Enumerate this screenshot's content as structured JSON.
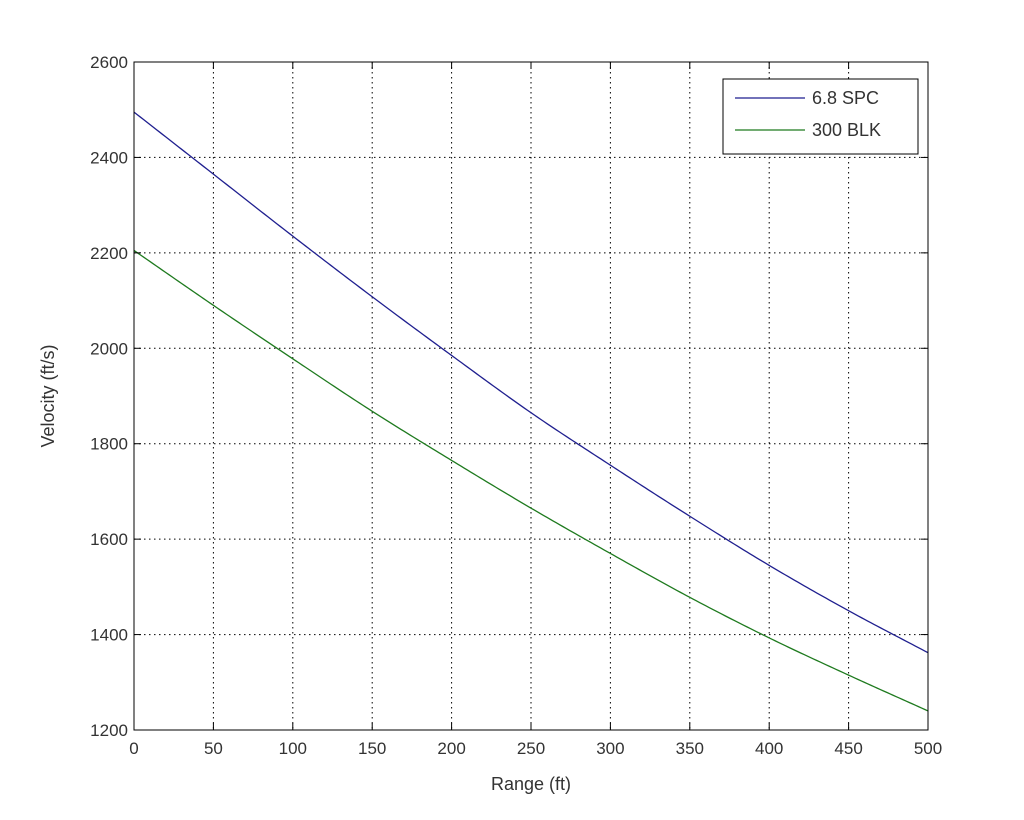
{
  "chart_data": {
    "type": "line",
    "title": "",
    "xlabel": "Range (ft)",
    "ylabel": "Velocity (ft/s)",
    "xlim": [
      0,
      500
    ],
    "ylim": [
      1200,
      2600
    ],
    "xticks": [
      0,
      50,
      100,
      150,
      200,
      250,
      300,
      350,
      400,
      450,
      500
    ],
    "yticks": [
      1200,
      1400,
      1600,
      1800,
      2000,
      2200,
      2400,
      2600
    ],
    "grid": true,
    "legend_position": "top-right",
    "x": [
      0,
      50,
      100,
      150,
      200,
      250,
      300,
      350,
      400,
      450,
      500
    ],
    "series": [
      {
        "name": "6.8 SPC",
        "color": "#1f1f8f",
        "values": [
          2495,
          2365,
          2235,
          2108,
          1985,
          1865,
          1755,
          1648,
          1545,
          1450,
          1362
        ]
      },
      {
        "name": "300 BLK",
        "color": "#1e7a1e",
        "values": [
          2205,
          2090,
          1978,
          1868,
          1765,
          1665,
          1570,
          1478,
          1393,
          1315,
          1240
        ]
      }
    ]
  }
}
